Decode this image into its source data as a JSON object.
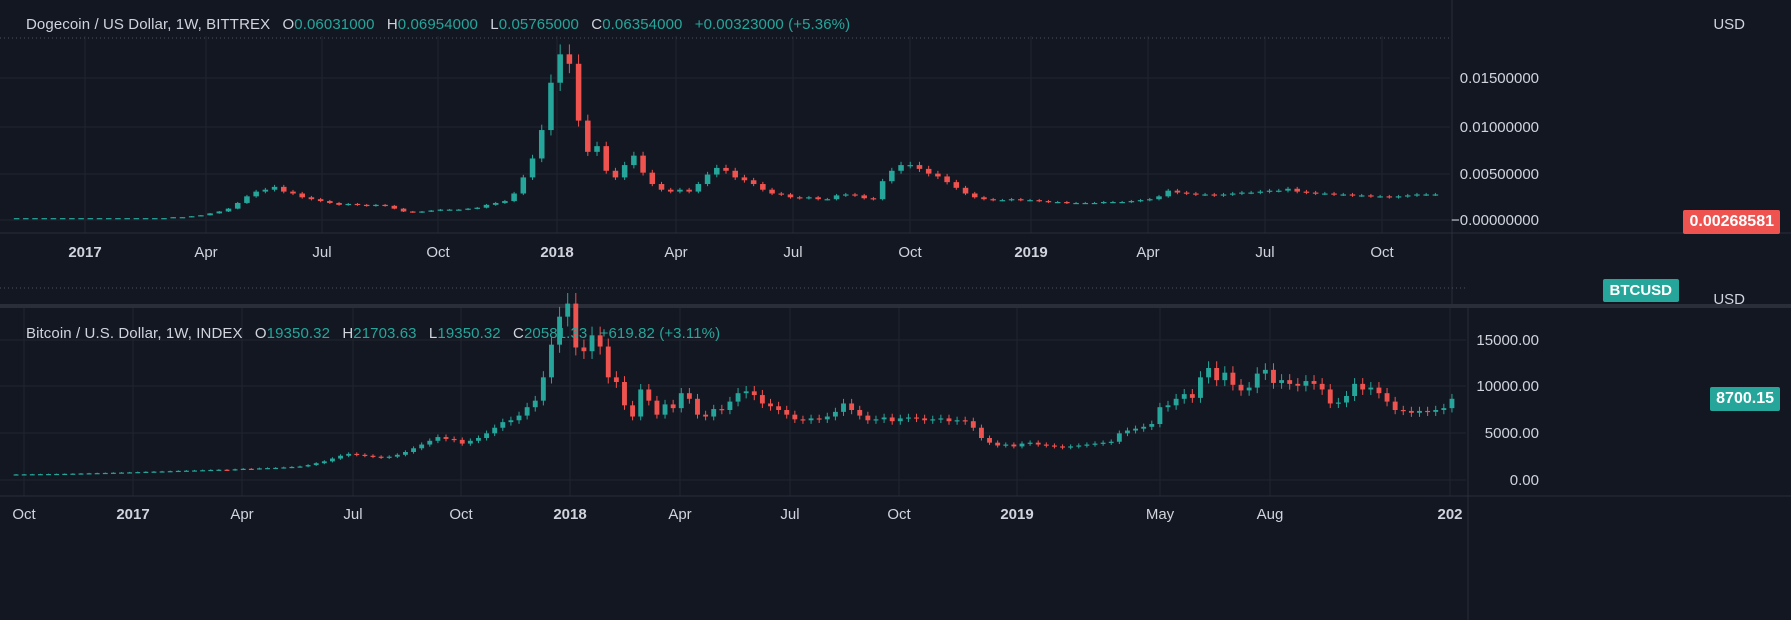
{
  "colors": {
    "background": "#131722",
    "grid": "#1f2430",
    "up": "#26a69a",
    "down": "#ef5350",
    "text": "#d1d4dc"
  },
  "panes": {
    "doge": {
      "legend": {
        "title": "Dogecoin / US Dollar, 1W, BITTREX",
        "o_label": "O",
        "o_value": "0.06031000",
        "h_label": "H",
        "h_value": "0.06954000",
        "l_label": "L",
        "l_value": "0.05765000",
        "c_label": "C",
        "c_value": "0.06354000",
        "change": "+0.00323000 (+5.36%)"
      },
      "currency": "USD",
      "last_price": "0.00268581",
      "last_price_color": "#ef5350"
    },
    "btc": {
      "legend": {
        "title": "Bitcoin / U.S. Dollar, 1W, INDEX",
        "o_label": "O",
        "o_value": "19350.32",
        "h_label": "H",
        "h_value": "21703.63",
        "l_label": "L",
        "l_value": "19350.32",
        "c_label": "C",
        "c_value": "20581.33",
        "change": "+619.82 (+3.11%)"
      },
      "currency": "USD",
      "ticker": "BTCUSD",
      "last_price": "8700.15",
      "last_price_color": "#26a69a"
    }
  },
  "chart_data": [
    {
      "type": "candlestick",
      "title": "Dogecoin / US Dollar, 1W, BITTREX",
      "x_axis": {
        "ticks": [
          {
            "label": "2017",
            "year": true
          },
          {
            "label": "Apr",
            "year": false
          },
          {
            "label": "Jul",
            "year": false
          },
          {
            "label": "Oct",
            "year": false
          },
          {
            "label": "2018",
            "year": true
          },
          {
            "label": "Apr",
            "year": false
          },
          {
            "label": "Jul",
            "year": false
          },
          {
            "label": "Oct",
            "year": false
          },
          {
            "label": "2019",
            "year": true
          },
          {
            "label": "Apr",
            "year": false
          },
          {
            "label": "Jul",
            "year": false
          },
          {
            "label": "Oct",
            "year": false
          }
        ]
      },
      "y_axis": {
        "ticks": [
          "0.01500000",
          "0.01000000",
          "0.00500000",
          "−0.00000000"
        ],
        "tick_values": [
          0.015,
          0.01,
          0.005,
          0
        ],
        "ylim": [
          -0.0005,
          0.0195
        ]
      },
      "series_close_weekly_estimate": [
        0.0002,
        0.0002,
        0.0002,
        0.0002,
        0.0002,
        0.0002,
        0.0002,
        0.0002,
        0.0002,
        0.0002,
        0.0002,
        0.0002,
        0.0002,
        0.0002,
        0.0002,
        0.0002,
        0.0002,
        0.0003,
        0.0003,
        0.0004,
        0.0005,
        0.0007,
        0.0009,
        0.0012,
        0.0018,
        0.0025,
        0.003,
        0.0032,
        0.0035,
        0.003,
        0.0028,
        0.0024,
        0.0022,
        0.002,
        0.0018,
        0.0016,
        0.0017,
        0.0016,
        0.0015,
        0.0016,
        0.0015,
        0.0012,
        0.0009,
        0.0008,
        0.0009,
        0.001,
        0.0011,
        0.0011,
        0.0011,
        0.0012,
        0.0013,
        0.0016,
        0.0018,
        0.002,
        0.0028,
        0.0045,
        0.0065,
        0.0095,
        0.0145,
        0.0175,
        0.0165,
        0.0105,
        0.0072,
        0.0078,
        0.0052,
        0.0045,
        0.0058,
        0.0068,
        0.005,
        0.0038,
        0.0032,
        0.003,
        0.0032,
        0.003,
        0.0038,
        0.0048,
        0.0055,
        0.0052,
        0.0045,
        0.0042,
        0.0038,
        0.0032,
        0.0028,
        0.0027,
        0.0024,
        0.0023,
        0.0024,
        0.0022,
        0.0022,
        0.0026,
        0.0027,
        0.0026,
        0.0023,
        0.0022,
        0.0041,
        0.0052,
        0.0058,
        0.0058,
        0.0054,
        0.0049,
        0.0046,
        0.004,
        0.0034,
        0.0028,
        0.0024,
        0.0022,
        0.0021,
        0.0021,
        0.0022,
        0.0021,
        0.0021,
        0.002,
        0.0019,
        0.0019,
        0.0018,
        0.0018,
        0.0018,
        0.0018,
        0.0019,
        0.0019,
        0.0019,
        0.002,
        0.0021,
        0.0022,
        0.0025,
        0.0031,
        0.0029,
        0.0028,
        0.0027,
        0.0027,
        0.0026,
        0.0027,
        0.0028,
        0.0029,
        0.0029,
        0.003,
        0.0031,
        0.0031,
        0.0033,
        0.003,
        0.0029,
        0.0028,
        0.0028,
        0.0027,
        0.0027,
        0.0026,
        0.0026,
        0.0025,
        0.0025,
        0.0024,
        0.0025,
        0.0026,
        0.0027,
        0.0027,
        0.0027
      ]
    },
    {
      "type": "candlestick",
      "title": "Bitcoin / U.S. Dollar, 1W, INDEX",
      "x_axis": {
        "ticks": [
          {
            "label": "Oct",
            "year": false
          },
          {
            "label": "2017",
            "year": true
          },
          {
            "label": "Apr",
            "year": false
          },
          {
            "label": "Jul",
            "year": false
          },
          {
            "label": "Oct",
            "year": false
          },
          {
            "label": "2018",
            "year": true
          },
          {
            "label": "Apr",
            "year": false
          },
          {
            "label": "Jul",
            "year": false
          },
          {
            "label": "Oct",
            "year": false
          },
          {
            "label": "2019",
            "year": true
          },
          {
            "label": "May",
            "year": false
          },
          {
            "label": "Aug",
            "year": false
          },
          {
            "label": "202",
            "year": true
          }
        ]
      },
      "y_axis": {
        "ticks": [
          "15000.00",
          "10000.00",
          "5000.00",
          "0.00"
        ],
        "tick_values": [
          15000,
          10000,
          5000,
          0
        ],
        "ylim": [
          -1100,
          19200
        ]
      },
      "series_close_weekly_estimate": [
        600,
        610,
        620,
        630,
        640,
        650,
        660,
        680,
        700,
        720,
        740,
        760,
        780,
        800,
        820,
        850,
        880,
        900,
        920,
        950,
        980,
        1000,
        1020,
        1050,
        1080,
        1100,
        1050,
        1150,
        1200,
        1180,
        1250,
        1280,
        1300,
        1350,
        1400,
        1450,
        1600,
        1800,
        2000,
        2300,
        2600,
        2800,
        2700,
        2600,
        2500,
        2400,
        2500,
        2700,
        3000,
        3400,
        3800,
        4200,
        4600,
        4400,
        4300,
        3900,
        4200,
        4500,
        5000,
        5600,
        6200,
        6400,
        6900,
        7800,
        8500,
        11000,
        14500,
        17500,
        18900,
        14200,
        13800,
        15500,
        14300,
        11000,
        10500,
        8000,
        6800,
        9700,
        8500,
        7000,
        8100,
        7700,
        9300,
        8700,
        7000,
        6800,
        7600,
        7500,
        8400,
        9300,
        9500,
        9100,
        8200,
        7900,
        7500,
        7000,
        6500,
        6400,
        6600,
        6500,
        6800,
        7300,
        8200,
        7500,
        6900,
        6400,
        6500,
        6700,
        6300,
        6600,
        6700,
        6600,
        6400,
        6500,
        6600,
        6300,
        6400,
        6300,
        5600,
        4500,
        4000,
        3700,
        3800,
        3600,
        3900,
        4000,
        3800,
        3700,
        3600,
        3500,
        3600,
        3700,
        3800,
        3900,
        4000,
        4100,
        5000,
        5300,
        5500,
        5700,
        6000,
        7800,
        8000,
        8700,
        9200,
        8800,
        11000,
        12000,
        10700,
        11500,
        10200,
        9600,
        9900,
        11400,
        11800,
        10400,
        10700,
        10300,
        10100,
        10600,
        10300,
        9700,
        8200,
        8300,
        9000,
        10300,
        9700,
        9900,
        9300,
        8400,
        7500,
        7400,
        7200,
        7400,
        7300,
        7500,
        7700,
        8700
      ]
    }
  ]
}
